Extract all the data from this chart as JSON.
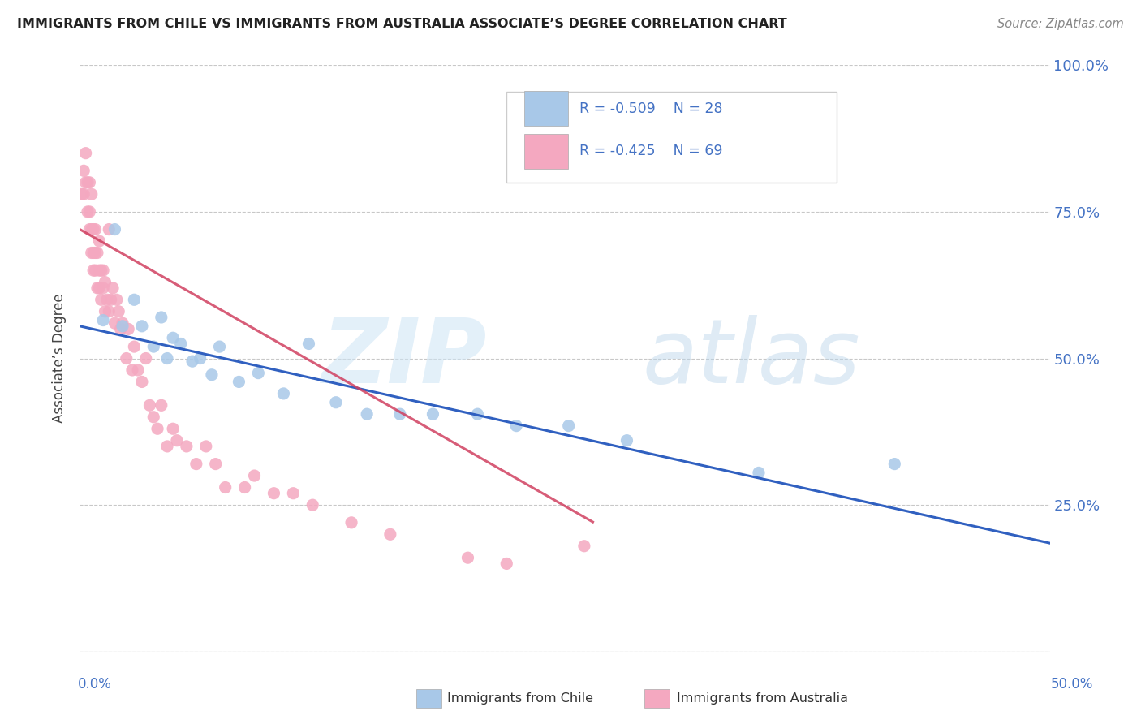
{
  "title": "IMMIGRANTS FROM CHILE VS IMMIGRANTS FROM AUSTRALIA ASSOCIATE’S DEGREE CORRELATION CHART",
  "source": "Source: ZipAtlas.com",
  "ylabel": "Associate’s Degree",
  "xlim": [
    0,
    0.5
  ],
  "ylim": [
    0,
    1.0
  ],
  "yticks": [
    0.0,
    0.25,
    0.5,
    0.75,
    1.0
  ],
  "ytick_labels": [
    "",
    "25.0%",
    "50.0%",
    "75.0%",
    "100.0%"
  ],
  "chile_color": "#a8c8e8",
  "australia_color": "#f4a8c0",
  "chile_line_color": "#3060c0",
  "australia_line_color": "#d04060",
  "legend_text_color": "#4472c4",
  "R_chile": -0.509,
  "N_chile": 28,
  "R_australia": -0.425,
  "N_australia": 69,
  "chile_x": [
    0.012,
    0.018,
    0.022,
    0.028,
    0.032,
    0.038,
    0.042,
    0.048,
    0.052,
    0.058,
    0.062,
    0.068,
    0.072,
    0.082,
    0.092,
    0.105,
    0.118,
    0.132,
    0.148,
    0.165,
    0.182,
    0.205,
    0.225,
    0.252,
    0.282,
    0.35,
    0.42,
    0.045
  ],
  "chile_y": [
    0.565,
    0.72,
    0.555,
    0.6,
    0.555,
    0.52,
    0.57,
    0.535,
    0.525,
    0.495,
    0.5,
    0.472,
    0.52,
    0.46,
    0.475,
    0.44,
    0.525,
    0.425,
    0.405,
    0.405,
    0.405,
    0.405,
    0.385,
    0.385,
    0.36,
    0.305,
    0.32,
    0.5
  ],
  "australia_x": [
    0.001,
    0.002,
    0.002,
    0.003,
    0.003,
    0.004,
    0.004,
    0.005,
    0.005,
    0.005,
    0.006,
    0.006,
    0.006,
    0.007,
    0.007,
    0.007,
    0.008,
    0.008,
    0.008,
    0.009,
    0.009,
    0.01,
    0.01,
    0.01,
    0.011,
    0.011,
    0.012,
    0.012,
    0.013,
    0.013,
    0.014,
    0.015,
    0.015,
    0.016,
    0.017,
    0.018,
    0.019,
    0.02,
    0.021,
    0.022,
    0.024,
    0.025,
    0.027,
    0.028,
    0.03,
    0.032,
    0.034,
    0.036,
    0.038,
    0.04,
    0.042,
    0.045,
    0.048,
    0.05,
    0.055,
    0.06,
    0.065,
    0.07,
    0.075,
    0.085,
    0.09,
    0.1,
    0.11,
    0.12,
    0.14,
    0.16,
    0.2,
    0.22,
    0.26
  ],
  "australia_y": [
    0.78,
    0.82,
    0.78,
    0.85,
    0.8,
    0.8,
    0.75,
    0.8,
    0.75,
    0.72,
    0.78,
    0.72,
    0.68,
    0.72,
    0.68,
    0.65,
    0.72,
    0.68,
    0.65,
    0.68,
    0.62,
    0.7,
    0.65,
    0.62,
    0.65,
    0.6,
    0.65,
    0.62,
    0.63,
    0.58,
    0.6,
    0.58,
    0.72,
    0.6,
    0.62,
    0.56,
    0.6,
    0.58,
    0.55,
    0.56,
    0.5,
    0.55,
    0.48,
    0.52,
    0.48,
    0.46,
    0.5,
    0.42,
    0.4,
    0.38,
    0.42,
    0.35,
    0.38,
    0.36,
    0.35,
    0.32,
    0.35,
    0.32,
    0.28,
    0.28,
    0.3,
    0.27,
    0.27,
    0.25,
    0.22,
    0.2,
    0.16,
    0.15,
    0.18
  ],
  "chile_trend_x": [
    0.0,
    0.5
  ],
  "chile_trend_y": [
    0.555,
    0.185
  ],
  "australia_trend_x": [
    0.0,
    0.265
  ],
  "australia_trend_y": [
    0.72,
    0.22
  ],
  "background_color": "#ffffff",
  "grid_color": "#c8c8c8"
}
